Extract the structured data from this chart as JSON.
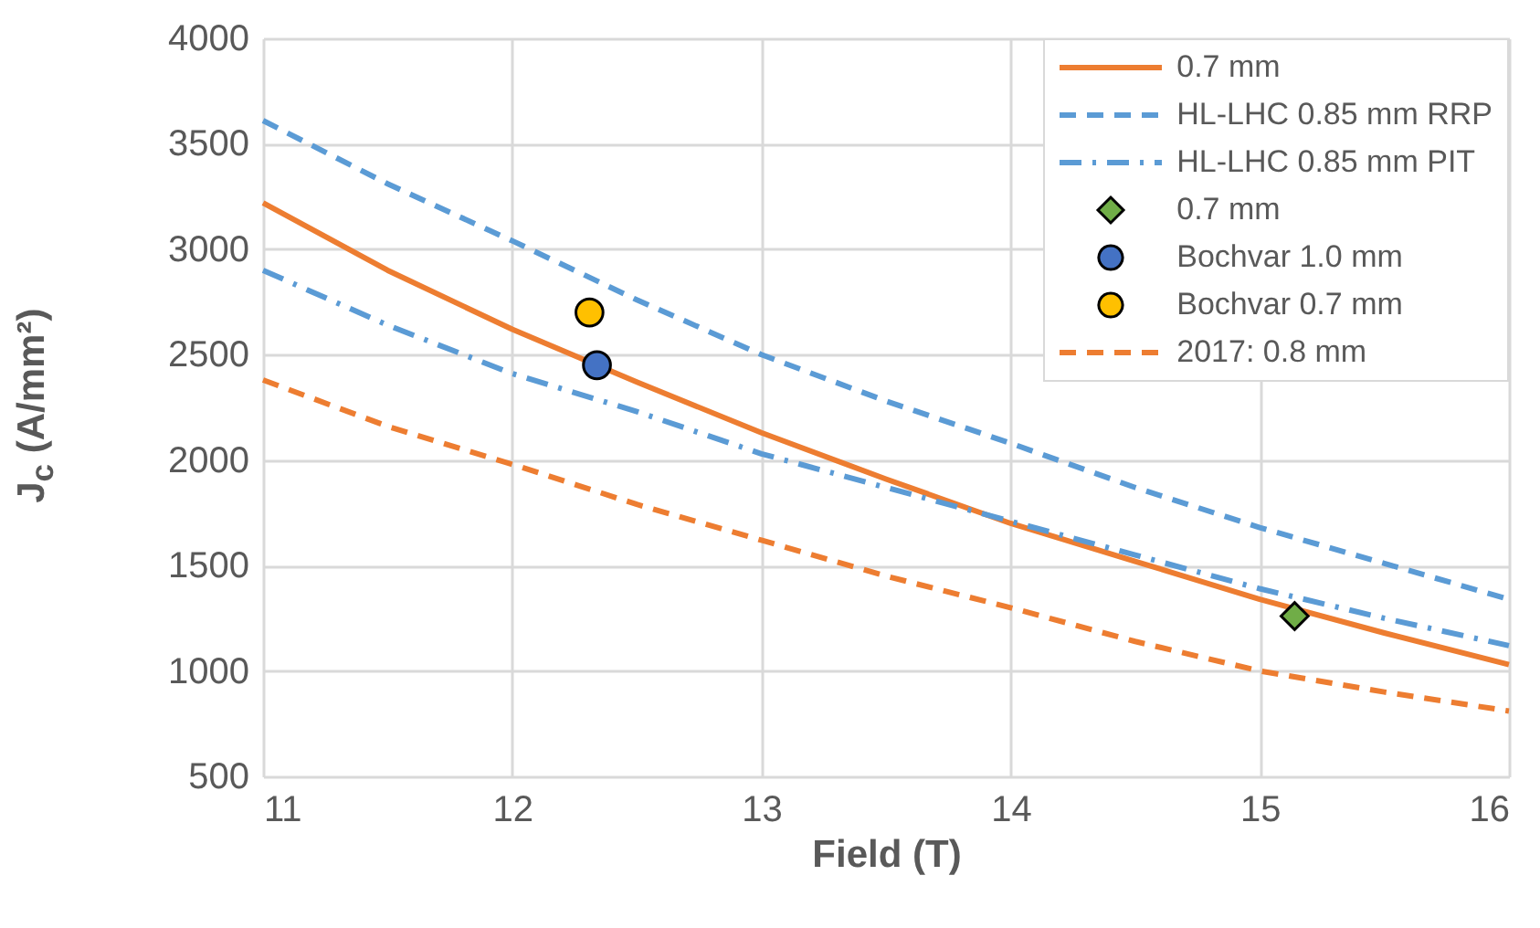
{
  "chart_data": {
    "type": "line",
    "xlabel": "Field (T)",
    "ylabel": "J$_{c}$ (A/mm²)",
    "x": [
      11,
      11.5,
      12,
      12.5,
      13,
      13.5,
      14,
      14.5,
      15,
      15.5,
      16
    ],
    "xlim": [
      11,
      16
    ],
    "xticks": [
      11,
      12,
      13,
      14,
      15,
      16
    ],
    "ylim": [
      500,
      4000
    ],
    "yticks": [
      500,
      1000,
      1500,
      2000,
      2500,
      3000,
      3500,
      4000
    ],
    "grid": true,
    "legend": "top right",
    "series": [
      {
        "name": "0.7 mm",
        "color": "#ed7d31",
        "line_style": "solid",
        "values": [
          3220,
          2900,
          2620,
          2370,
          2130,
          1910,
          1700,
          1520,
          1340,
          1180,
          1030
        ]
      },
      {
        "name": "HL-LHC 0.85 mm RRP",
        "color": "#5b9bd5",
        "line_style": "dashed",
        "values": [
          3610,
          3310,
          3040,
          2760,
          2500,
          2280,
          2080,
          1870,
          1680,
          1510,
          1340
        ]
      },
      {
        "name": "HL-LHC 0.85 mm PIT",
        "color": "#5b9bd5",
        "line_style": "dashdot",
        "values": [
          2900,
          2640,
          2410,
          2230,
          2030,
          1870,
          1710,
          1550,
          1390,
          1250,
          1120
        ]
      },
      {
        "name": "0.7 mm",
        "color": "#70ad47",
        "type": "scatter",
        "marker": "diamond",
        "x": [
          15.14
        ],
        "values": [
          1260
        ]
      },
      {
        "name": "Bochvar 1.0 mm",
        "color": "#4472c4",
        "type": "scatter",
        "marker": "circle",
        "x": [
          12.34
        ],
        "values": [
          2450
        ]
      },
      {
        "name": "Bochvar 0.7 mm",
        "color": "#ffc000",
        "type": "scatter",
        "marker": "circle",
        "x": [
          12.31
        ],
        "values": [
          2700
        ]
      },
      {
        "name": "2017: 0.8 mm",
        "color": "#ed7d31",
        "line_style": "dashed",
        "values": [
          2380,
          2160,
          1980,
          1790,
          1620,
          1450,
          1300,
          1140,
          1000,
          900,
          810
        ]
      }
    ]
  }
}
